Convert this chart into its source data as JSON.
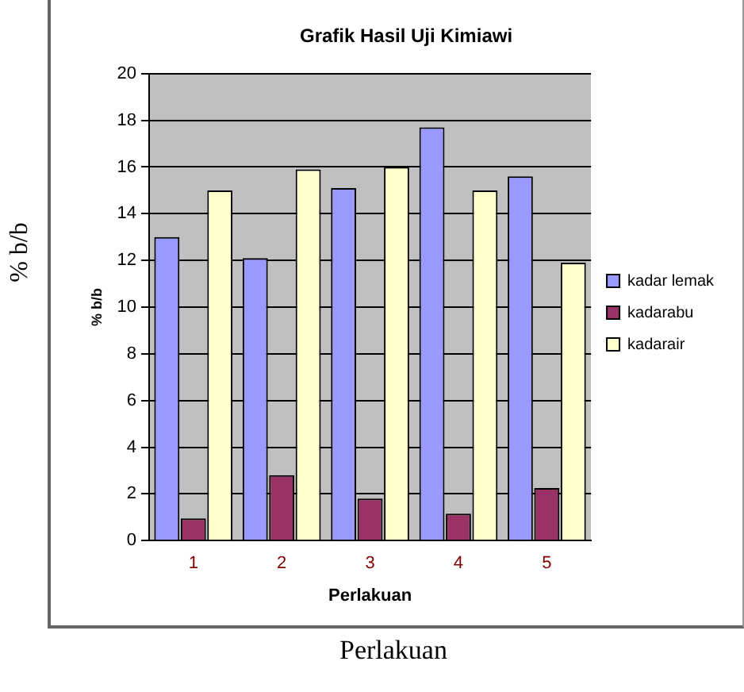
{
  "chart_data": {
    "type": "bar",
    "title": "Grafik Hasil Uji Kimiawi",
    "xlabel": "Perlakuan",
    "ylabel": "% b/b",
    "categories": [
      "1",
      "2",
      "3",
      "4",
      "5"
    ],
    "series": [
      {
        "name": "kadar lemak",
        "color": "#9999ff",
        "values": [
          13.0,
          12.1,
          15.1,
          17.7,
          15.6
        ]
      },
      {
        "name": "kadarabu",
        "color": "#993366",
        "values": [
          0.95,
          2.8,
          1.8,
          1.15,
          2.25
        ]
      },
      {
        "name": "kadarair",
        "color": "#ffffcc",
        "values": [
          15.0,
          15.9,
          16.0,
          15.0,
          11.9
        ]
      }
    ],
    "ylim": [
      0,
      20
    ],
    "yticks": [
      0,
      2,
      4,
      6,
      8,
      10,
      12,
      14,
      16,
      18,
      20
    ],
    "grid": "y",
    "legend": "right",
    "annotations": [
      "% b/b",
      "Perlakuan"
    ]
  }
}
